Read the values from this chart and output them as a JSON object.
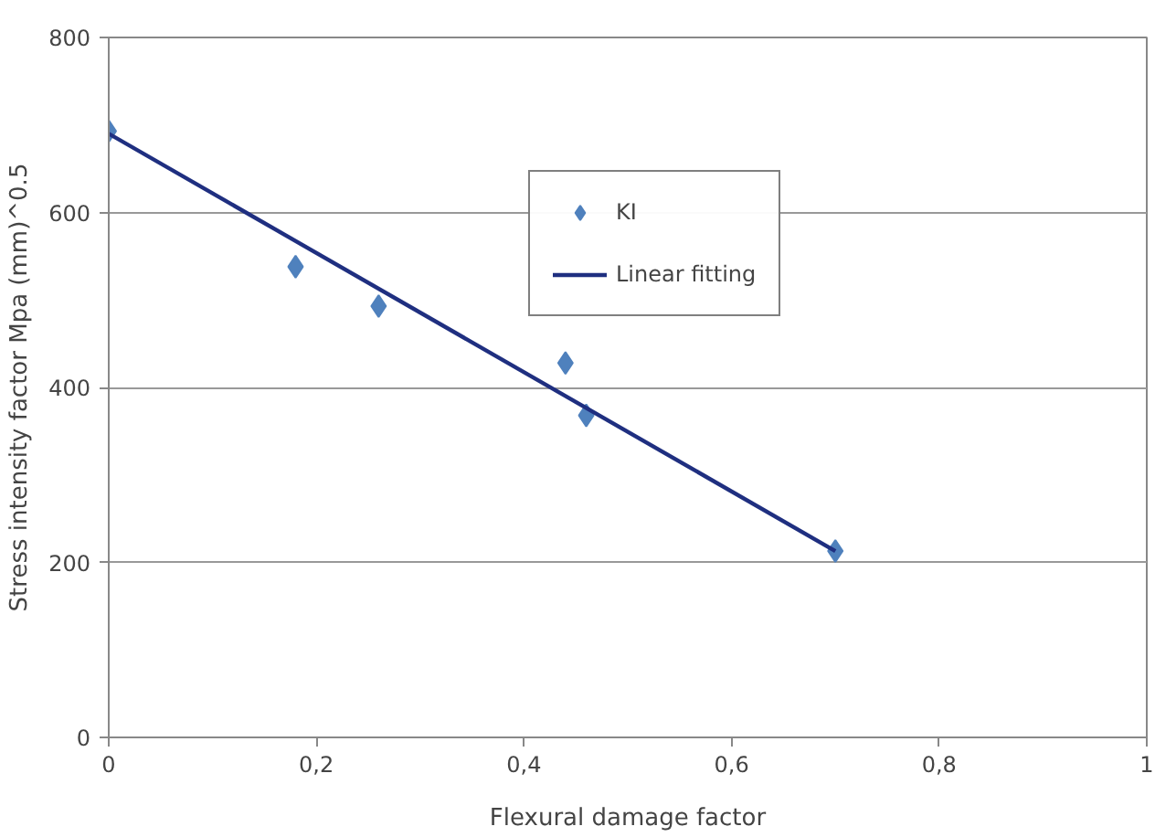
{
  "chart_data": {
    "type": "scatter",
    "xlabel": "Flexural damage factor",
    "ylabel": "Stress intensity factor Mpa (mm)^0.5",
    "xlim": [
      0,
      1
    ],
    "ylim": [
      0,
      800
    ],
    "xticks": [
      0,
      {
        "value": 0.2,
        "label": "0,2"
      },
      {
        "value": 0.4,
        "label": "0,4"
      },
      {
        "value": 0.6,
        "label": "0,6"
      },
      {
        "value": 0.8,
        "label": "0,8"
      },
      1
    ],
    "yticks": [
      0,
      200,
      400,
      600,
      800
    ],
    "grid": "y",
    "legend": "top right",
    "series": [
      {
        "name": "KI",
        "color": "#4f81bd",
        "marker": "diamond",
        "x": [
          0,
          0.18,
          0.26,
          0.44,
          0.46,
          0.7
        ],
        "values": [
          693,
          538,
          493,
          428,
          368,
          213
        ]
      },
      {
        "name": "Linear fitting",
        "type": "line",
        "color": "#1f2f80",
        "line_style": "solid",
        "x": [
          0,
          0.7
        ],
        "values": [
          690,
          213
        ]
      }
    ]
  }
}
